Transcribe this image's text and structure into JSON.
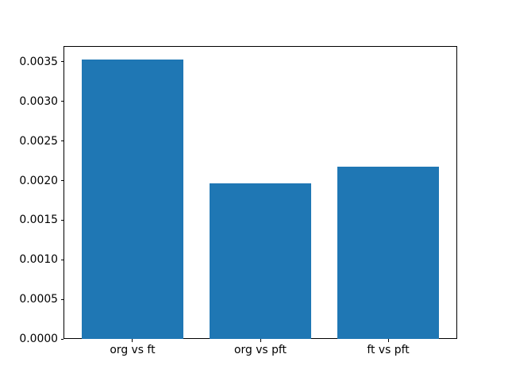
{
  "figure": {
    "background": "#ffffff",
    "axes_background": "#ffffff",
    "spine_color": "#000000",
    "tick_color": "#000000",
    "label_color": "#000000"
  },
  "chart_data": {
    "type": "bar",
    "title": "",
    "xlabel": "",
    "ylabel": "",
    "categories": [
      "org vs ft",
      "org vs pft",
      "ft vs pft"
    ],
    "values": [
      0.00353,
      0.00197,
      0.00218
    ],
    "bar_color": "#1f77b4",
    "bar_width": 0.8,
    "x_positions": [
      0,
      1,
      2
    ],
    "xlim": [
      -0.54,
      2.54
    ],
    "ylim": [
      0,
      0.0037
    ],
    "yticks": [
      0.0,
      0.0005,
      0.001,
      0.0015,
      0.002,
      0.0025,
      0.003,
      0.0035
    ],
    "ytick_labels": [
      "0.0000",
      "0.0005",
      "0.0010",
      "0.0015",
      "0.0020",
      "0.0025",
      "0.0030",
      "0.0035"
    ],
    "grid": false,
    "legend": null
  }
}
